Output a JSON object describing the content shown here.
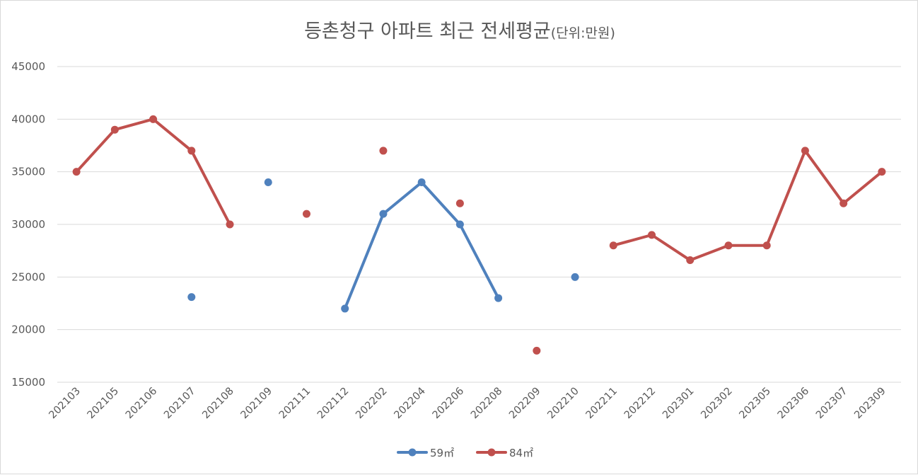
{
  "chart_data": {
    "type": "line",
    "title": "등촌청구 아파트 최근 전세평균",
    "subtitle": "(단위:만원)",
    "categories": [
      "202103",
      "202105",
      "202106",
      "202107",
      "202108",
      "202109",
      "202111",
      "202112",
      "202202",
      "202204",
      "202206",
      "202208",
      "202209",
      "202210",
      "202211",
      "202212",
      "202301",
      "202302",
      "202305",
      "202306",
      "202307",
      "202309"
    ],
    "y_ticks": [
      "45000",
      "40000",
      "35000",
      "30000",
      "25000",
      "20000",
      "15000"
    ],
    "ylim": [
      15000,
      45000
    ],
    "grid": true,
    "legend_position": "bottom",
    "series": [
      {
        "name": "59㎡",
        "color": "#4f81bd",
        "values": [
          null,
          null,
          null,
          23100,
          null,
          34000,
          null,
          22000,
          31000,
          34000,
          30000,
          23000,
          null,
          25000,
          null,
          null,
          null,
          null,
          null,
          null,
          null,
          null
        ]
      },
      {
        "name": "84㎡",
        "color": "#c0504d",
        "values": [
          35000,
          39000,
          40000,
          37000,
          30000,
          null,
          31000,
          null,
          37000,
          null,
          32000,
          null,
          18000,
          null,
          28000,
          29000,
          26600,
          28000,
          28000,
          37000,
          32000,
          35000
        ]
      }
    ]
  }
}
